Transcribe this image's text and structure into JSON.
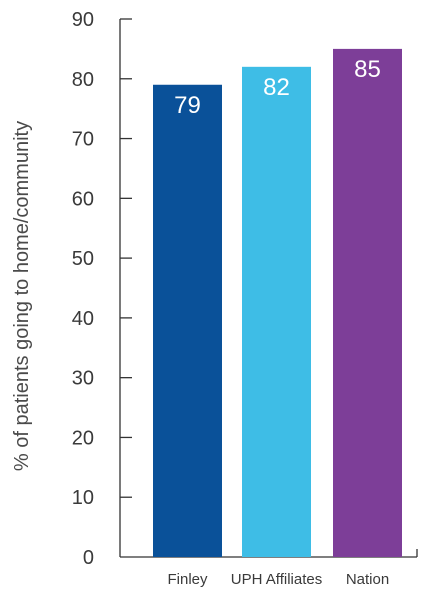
{
  "chart_data": {
    "type": "bar",
    "title": "",
    "xlabel": "",
    "ylabel": "% of patients going to home/community",
    "categories": [
      "Finley",
      "UPH Affiliates",
      "Nation"
    ],
    "values": [
      79,
      82,
      85
    ],
    "value_labels": [
      "79",
      "82",
      "85"
    ],
    "bar_colors": [
      "#0a5199",
      "#3ebde6",
      "#7d3e98"
    ],
    "ylim": [
      0,
      90
    ],
    "yticks": [
      0,
      10,
      20,
      30,
      40,
      50,
      60,
      70,
      80,
      90
    ],
    "ytick_labels": [
      "0",
      "10",
      "20",
      "30",
      "40",
      "50",
      "60",
      "70",
      "80",
      "90"
    ],
    "grid": false,
    "legend": "none"
  }
}
